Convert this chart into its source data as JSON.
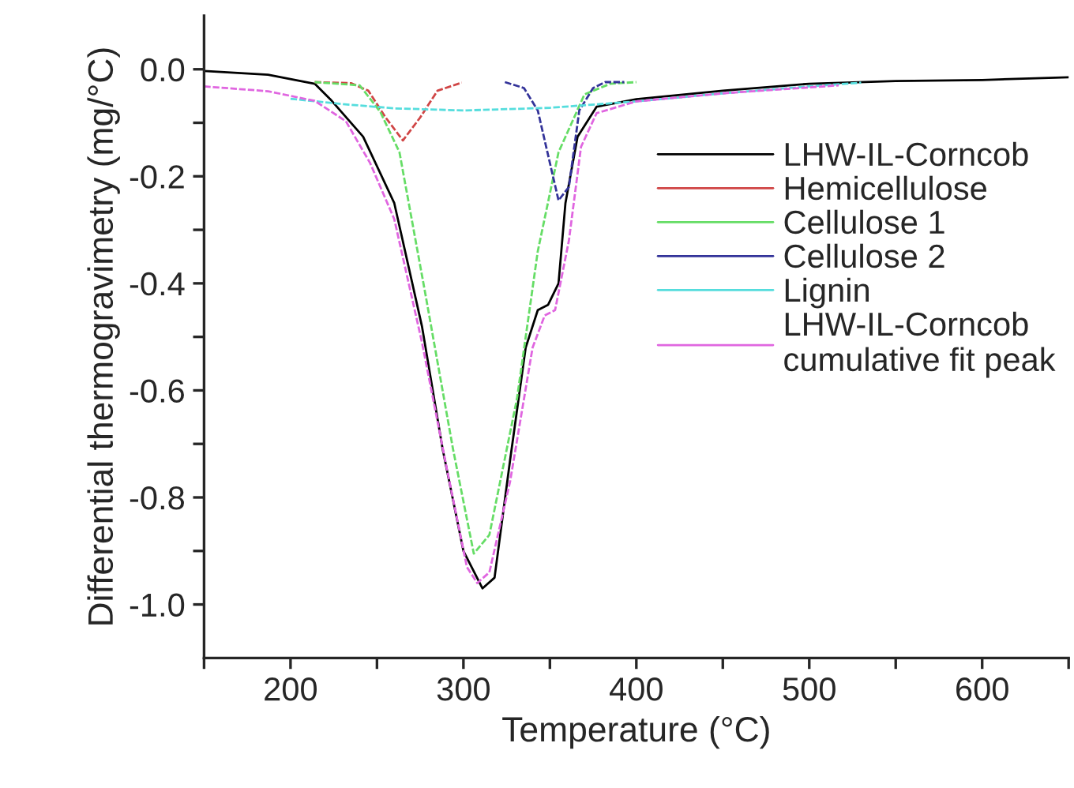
{
  "chart_data": {
    "type": "line",
    "xlabel": "Temperature (°C)",
    "ylabel": "Differential thermogravimetry (mg/°C)",
    "xlim": [
      150,
      650
    ],
    "ylim": [
      -1.1,
      0.1
    ],
    "xticks": [
      {
        "value": 150,
        "label": null
      },
      200,
      {
        "value": 250,
        "label": null
      },
      300,
      {
        "value": 350,
        "label": null
      },
      400,
      {
        "value": 450,
        "label": null
      },
      500,
      {
        "value": 550,
        "label": null
      },
      600,
      {
        "value": 650,
        "label": null
      }
    ],
    "yticks": [
      {
        "value": 0.0,
        "label": "0.0"
      },
      {
        "value": -0.1,
        "label": null
      },
      {
        "value": -0.2,
        "label": "-0.2"
      },
      {
        "value": -0.3,
        "label": null
      },
      {
        "value": -0.4,
        "label": "-0.4"
      },
      {
        "value": -0.5,
        "label": null
      },
      {
        "value": -0.6,
        "label": "-0.6"
      },
      {
        "value": -0.7,
        "label": null
      },
      {
        "value": -0.8,
        "label": "-0.8"
      },
      {
        "value": -0.9,
        "label": null
      },
      {
        "value": -1.0,
        "label": "-1.0"
      }
    ],
    "grid": false,
    "legend": "right",
    "marker": "none",
    "series": [
      {
        "name": "LHW-IL-Corncob",
        "color": "#000000",
        "line_style": "solid",
        "x": [
          150,
          187,
          214,
          223,
          242,
          260,
          276,
          288,
          300,
          311,
          318,
          327,
          336,
          343,
          349,
          355,
          359,
          366,
          377,
          400,
          450,
          500,
          550,
          600,
          650
        ],
        "values": [
          -0.003,
          -0.01,
          -0.027,
          -0.056,
          -0.126,
          -0.25,
          -0.48,
          -0.71,
          -0.9,
          -0.97,
          -0.95,
          -0.73,
          -0.52,
          -0.45,
          -0.44,
          -0.4,
          -0.25,
          -0.126,
          -0.07,
          -0.056,
          -0.04,
          -0.027,
          -0.022,
          -0.02,
          -0.015
        ]
      },
      {
        "name": "Hemicellulose",
        "color": "#d04545",
        "line_style": "dashed",
        "x": [
          214,
          235,
          245,
          255,
          265,
          275,
          285,
          299
        ],
        "values": [
          -0.024,
          -0.026,
          -0.04,
          -0.09,
          -0.133,
          -0.09,
          -0.04,
          -0.025
        ]
      },
      {
        "name": "Cellulose 1",
        "color": "#66dd66",
        "line_style": "dashed",
        "x": [
          214,
          240,
          252,
          263,
          278,
          294,
          306,
          315,
          331,
          343,
          355,
          370,
          385,
          400
        ],
        "values": [
          -0.024,
          -0.03,
          -0.08,
          -0.155,
          -0.42,
          -0.71,
          -0.905,
          -0.87,
          -0.615,
          -0.34,
          -0.155,
          -0.047,
          -0.027,
          -0.024
        ]
      },
      {
        "name": "Cellulose 2",
        "color": "#333399",
        "line_style": "dashed",
        "x": [
          324,
          335,
          343,
          355,
          361,
          367,
          375,
          382,
          393
        ],
        "values": [
          -0.024,
          -0.035,
          -0.077,
          -0.245,
          -0.22,
          -0.077,
          -0.035,
          -0.024,
          -0.024
        ]
      },
      {
        "name": "Lignin",
        "color": "#55dddd",
        "line_style": "dashed",
        "x": [
          200,
          230,
          260,
          300,
          350,
          400,
          450,
          500,
          530
        ],
        "values": [
          -0.055,
          -0.065,
          -0.073,
          -0.077,
          -0.072,
          -0.06,
          -0.045,
          -0.032,
          -0.025
        ]
      },
      {
        "name": "LHW-IL-Corncob\ncumulative fit peak",
        "color": "#e066e0",
        "line_style": "dashed",
        "x": [
          150,
          187,
          214,
          232,
          246,
          260,
          276,
          290,
          302,
          308,
          315,
          327,
          340,
          347,
          353,
          361,
          368,
          377,
          400,
          450,
          517
        ],
        "values": [
          -0.032,
          -0.041,
          -0.059,
          -0.097,
          -0.175,
          -0.28,
          -0.51,
          -0.74,
          -0.93,
          -0.96,
          -0.94,
          -0.77,
          -0.52,
          -0.46,
          -0.45,
          -0.32,
          -0.145,
          -0.082,
          -0.06,
          -0.045,
          -0.03
        ]
      }
    ]
  }
}
